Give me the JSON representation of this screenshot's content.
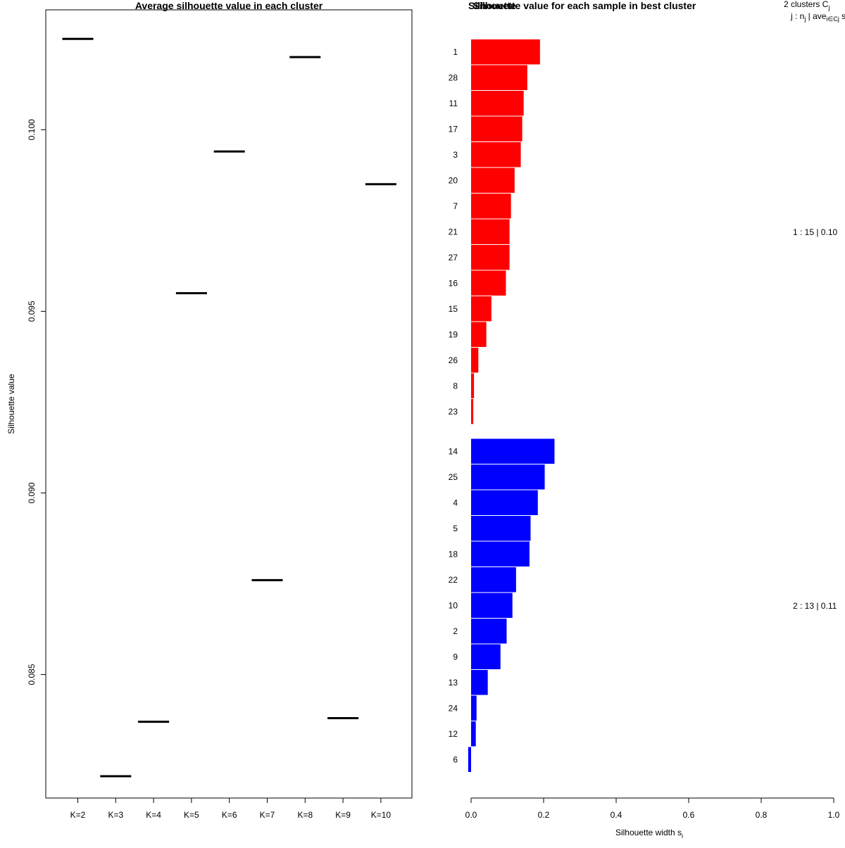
{
  "chart_data": [
    {
      "type": "scatter",
      "title": "Average silhouette value in each cluster",
      "xlabel": "",
      "ylabel": "Silhouette value",
      "categories": [
        "K=2",
        "K=3",
        "K=4",
        "K=5",
        "K=6",
        "K=7",
        "K=8",
        "K=9",
        "K=10"
      ],
      "values": [
        0.1025,
        0.0822,
        0.0837,
        0.0955,
        0.0994,
        0.0876,
        0.102,
        0.0838,
        0.0985
      ],
      "ylim": [
        0.0816,
        0.1033
      ],
      "yticks": [
        0.085,
        0.09,
        0.095,
        0.1
      ],
      "ytick_labels": [
        "0.085",
        "0.090",
        "0.095",
        "0.100"
      ],
      "marker": "horizontal-segment",
      "grid": false
    },
    {
      "type": "bar",
      "orientation": "horizontal",
      "title": "Silhouette value for each sample in best cluster",
      "overlapped_title_fragment": "Silhouette",
      "xlabel": "Silhouette width s",
      "xlabel_subscript": "i",
      "ylabel": "",
      "xlim": [
        0,
        1
      ],
      "xticks": [
        0.0,
        0.2,
        0.4,
        0.6,
        0.8,
        1.0
      ],
      "xtick_labels": [
        "0.0",
        "0.2",
        "0.4",
        "0.6",
        "0.8",
        "1.0"
      ],
      "grid": false,
      "series": [
        {
          "cluster": 1,
          "color": "#ff0000",
          "samples": [
            "1",
            "28",
            "11",
            "17",
            "3",
            "20",
            "7",
            "21",
            "27",
            "16",
            "15",
            "19",
            "26",
            "8",
            "23"
          ],
          "values": [
            0.19,
            0.155,
            0.145,
            0.141,
            0.137,
            0.12,
            0.11,
            0.106,
            0.106,
            0.096,
            0.056,
            0.042,
            0.02,
            0.008,
            0.006
          ]
        },
        {
          "cluster": 2,
          "color": "#0000ff",
          "samples": [
            "14",
            "25",
            "4",
            "5",
            "18",
            "22",
            "10",
            "2",
            "9",
            "13",
            "24",
            "12",
            "6"
          ],
          "values": [
            0.23,
            0.203,
            0.184,
            0.164,
            0.161,
            0.124,
            0.114,
            0.098,
            0.081,
            0.046,
            0.015,
            0.013,
            -0.008
          ]
        }
      ],
      "legend": {
        "header_line1": "2  clusters  C",
        "header_line1_sub": "j",
        "header_line2": "j :  n",
        "header_line2_sub": "j",
        "header_line2_mid": " | ave",
        "header_line2_mid_sub": "i∈Cj",
        "header_line2_end": "  s",
        "rows": [
          {
            "text": "1 :   15  |  0.10",
            "color": "#000000"
          },
          {
            "text": "2 :   13  |  0.11",
            "color": "#000000"
          }
        ]
      }
    }
  ]
}
